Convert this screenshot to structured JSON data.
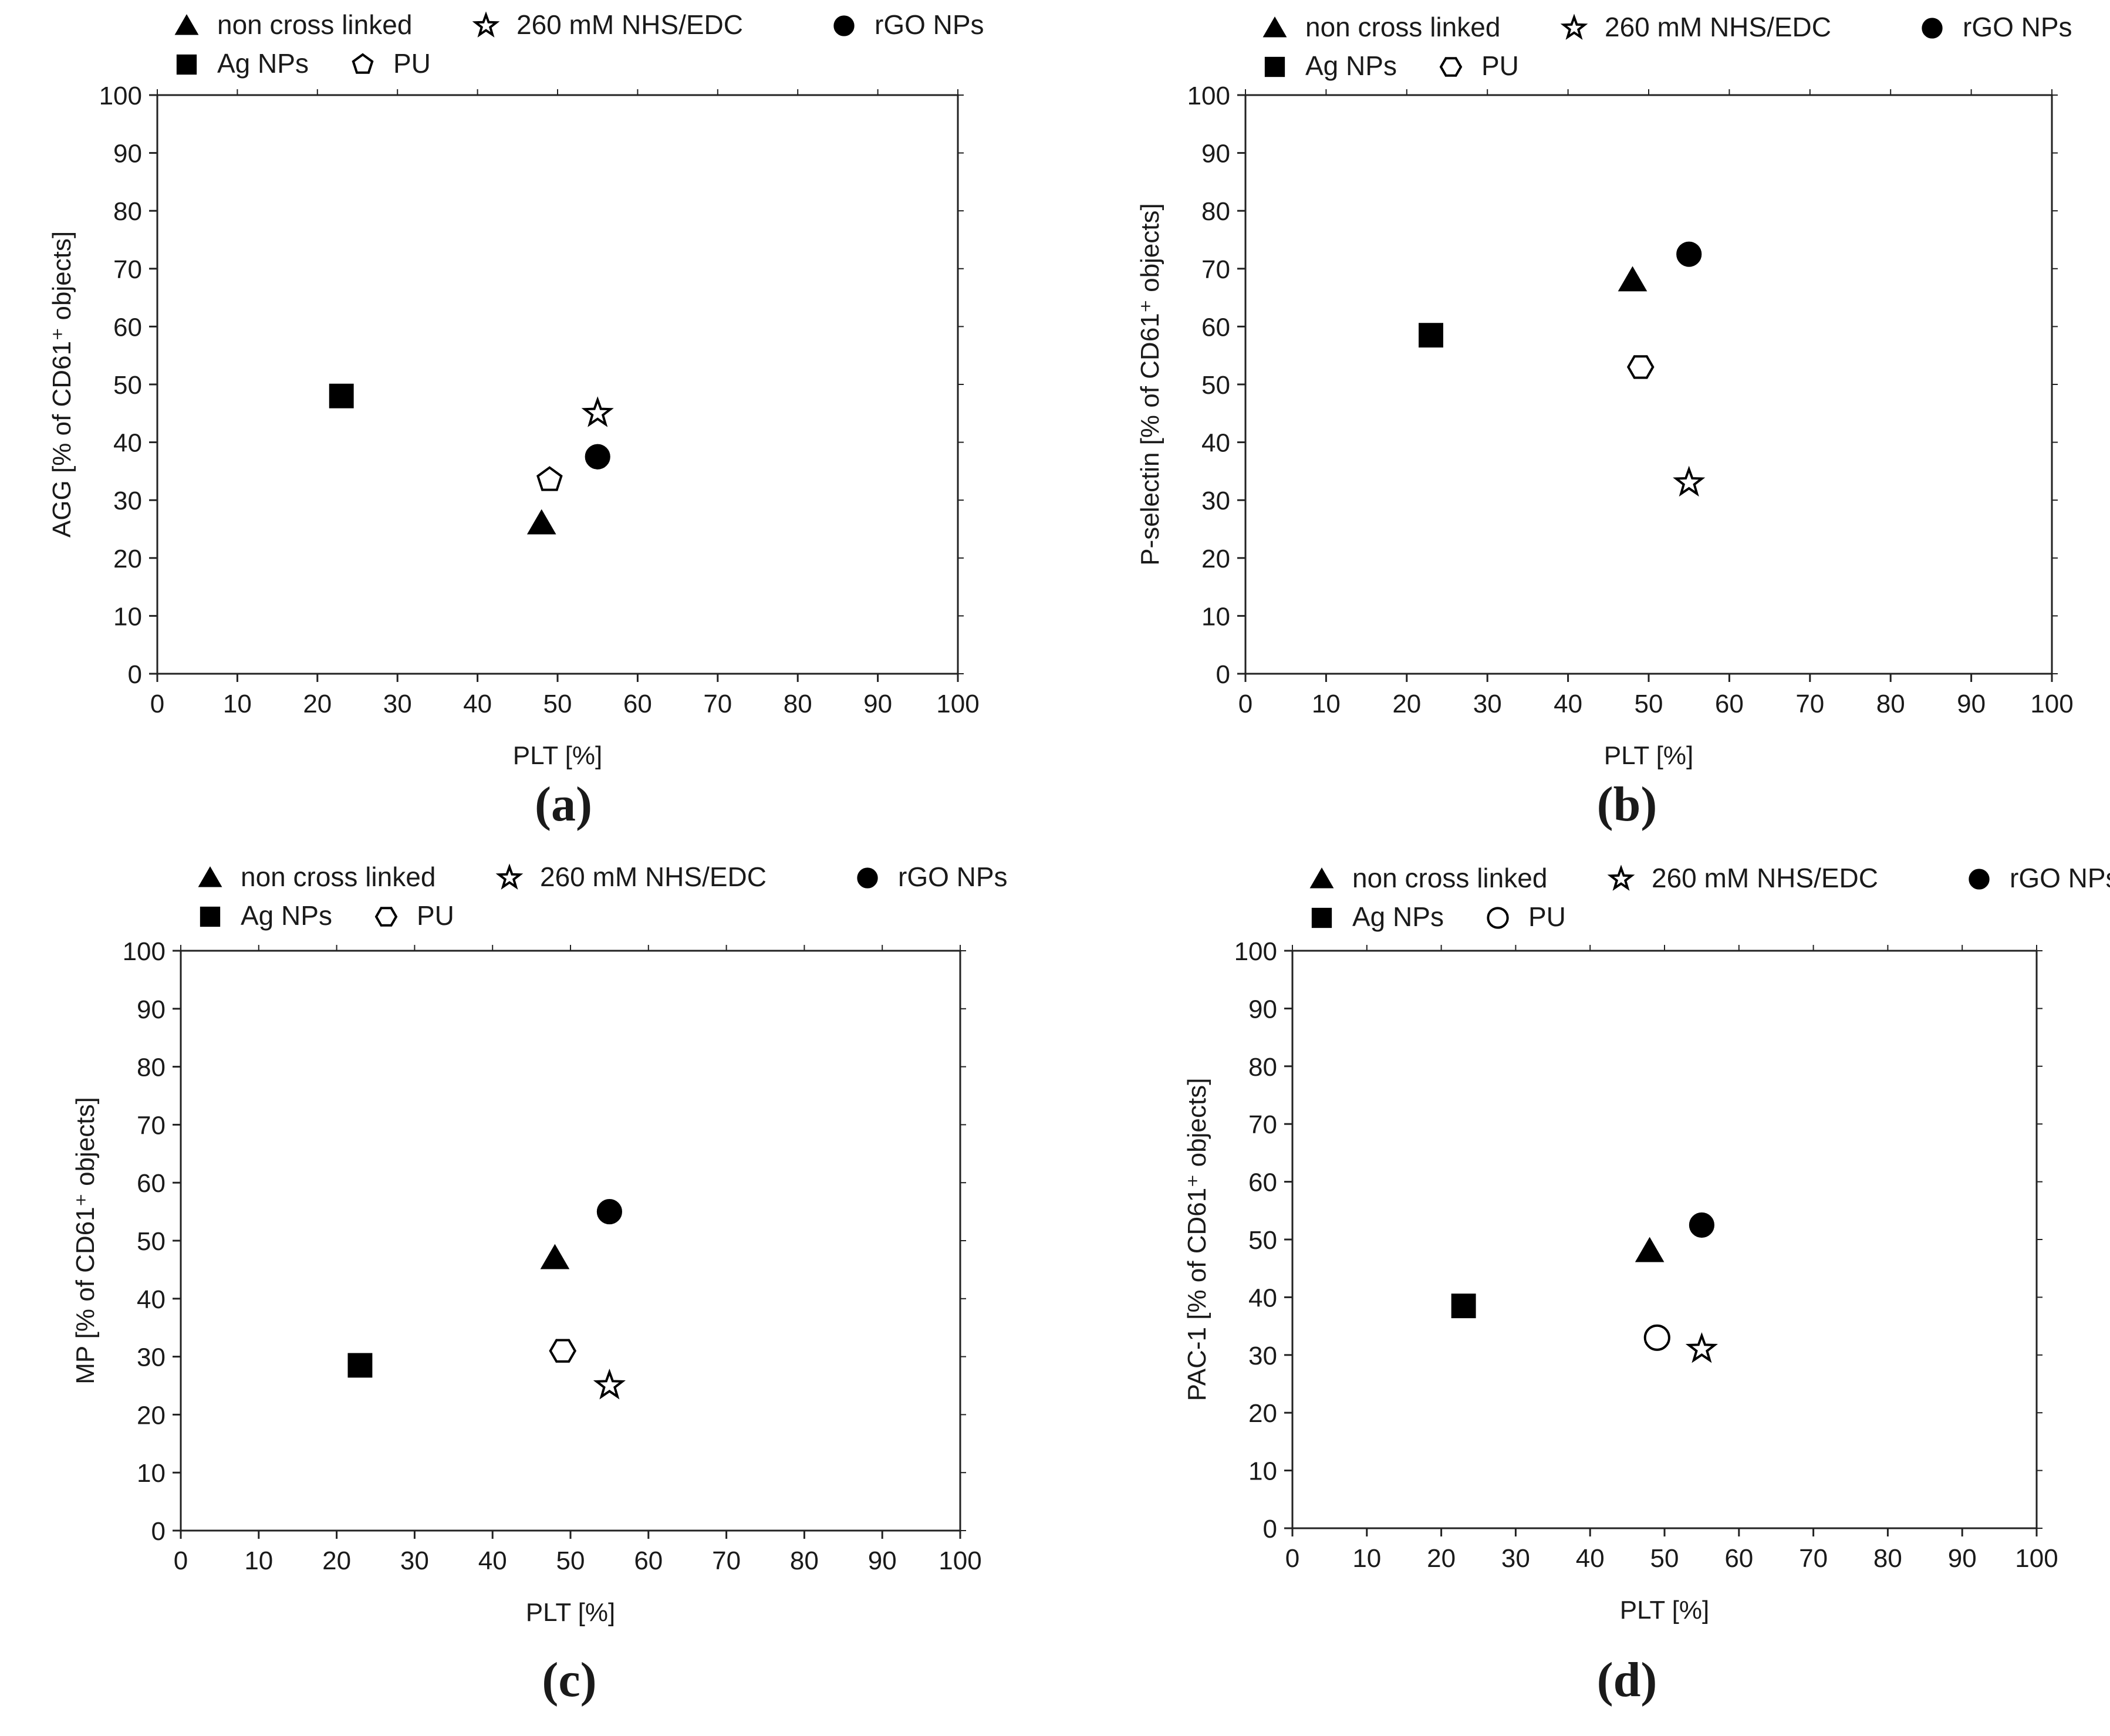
{
  "chart_data": [
    {
      "type": "scatter",
      "panel": "(a)",
      "xlabel": "PLT [%]",
      "ylabel": "AGG [% of CD61⁺ objects]",
      "xlim": [
        0,
        100
      ],
      "ylim": [
        0,
        100
      ],
      "xticks": [
        "0",
        "10",
        "20",
        "30",
        "40",
        "50",
        "60",
        "70",
        "80",
        "90",
        "100"
      ],
      "yticks": [
        "0",
        "10",
        "20",
        "30",
        "40",
        "50",
        "60",
        "70",
        "80",
        "90",
        "100"
      ],
      "series": [
        {
          "name": "non cross linked",
          "marker": "triangle-filled",
          "points": [
            {
              "x": 48,
              "y": 26
            }
          ]
        },
        {
          "name": "260 mM NHS/EDC",
          "marker": "star-open",
          "points": [
            {
              "x": 55,
              "y": 45
            }
          ]
        },
        {
          "name": "rGO NPs",
          "marker": "circle-filled",
          "points": [
            {
              "x": 55,
              "y": 37.5
            }
          ]
        },
        {
          "name": "Ag NPs",
          "marker": "square-filled",
          "points": [
            {
              "x": 23,
              "y": 48
            }
          ]
        },
        {
          "name": "PU",
          "marker": "pentagon-open",
          "points": [
            {
              "x": 49,
              "y": 33.5
            }
          ]
        }
      ]
    },
    {
      "type": "scatter",
      "panel": "(b)",
      "xlabel": "PLT [%]",
      "ylabel": "P-selectin [% of CD61⁺ objects]",
      "xlim": [
        0,
        100
      ],
      "ylim": [
        0,
        100
      ],
      "xticks": [
        "0",
        "10",
        "20",
        "30",
        "40",
        "50",
        "60",
        "70",
        "80",
        "90",
        "100"
      ],
      "yticks": [
        "0",
        "10",
        "20",
        "30",
        "40",
        "50",
        "60",
        "70",
        "80",
        "90",
        "100"
      ],
      "series": [
        {
          "name": "non cross linked",
          "marker": "triangle-filled",
          "points": [
            {
              "x": 48,
              "y": 68
            }
          ]
        },
        {
          "name": "260 mM NHS/EDC",
          "marker": "star-open",
          "points": [
            {
              "x": 55,
              "y": 33
            }
          ]
        },
        {
          "name": "rGO NPs",
          "marker": "circle-filled",
          "points": [
            {
              "x": 55,
              "y": 72.5
            }
          ]
        },
        {
          "name": "Ag NPs",
          "marker": "square-filled",
          "points": [
            {
              "x": 23,
              "y": 58.5
            }
          ]
        },
        {
          "name": "PU",
          "marker": "hexagon-open",
          "points": [
            {
              "x": 49,
              "y": 53
            }
          ]
        }
      ]
    },
    {
      "type": "scatter",
      "panel": "(c)",
      "xlabel": "PLT [%]",
      "ylabel": "MP [% of CD61⁺ objects]",
      "xlim": [
        0,
        100
      ],
      "ylim": [
        0,
        100
      ],
      "xticks": [
        "0",
        "10",
        "20",
        "30",
        "40",
        "50",
        "60",
        "70",
        "80",
        "90",
        "100"
      ],
      "yticks": [
        "0",
        "10",
        "20",
        "30",
        "40",
        "50",
        "60",
        "70",
        "80",
        "90",
        "100"
      ],
      "series": [
        {
          "name": "non cross linked",
          "marker": "triangle-filled",
          "points": [
            {
              "x": 48,
              "y": 47
            }
          ]
        },
        {
          "name": "260 mM NHS/EDC",
          "marker": "star-open",
          "points": [
            {
              "x": 55,
              "y": 25
            }
          ]
        },
        {
          "name": "rGO NPs",
          "marker": "circle-filled",
          "points": [
            {
              "x": 55,
              "y": 55
            }
          ]
        },
        {
          "name": "Ag NPs",
          "marker": "square-filled",
          "points": [
            {
              "x": 23,
              "y": 28.5
            }
          ]
        },
        {
          "name": "PU",
          "marker": "hexagon-open",
          "points": [
            {
              "x": 49,
              "y": 31
            }
          ]
        }
      ]
    },
    {
      "type": "scatter",
      "panel": "(d)",
      "xlabel": "PLT [%]",
      "ylabel": "PAC-1 [% of CD61⁺ objects]",
      "xlim": [
        0,
        100
      ],
      "ylim": [
        0,
        100
      ],
      "xticks": [
        "0",
        "10",
        "20",
        "30",
        "40",
        "50",
        "60",
        "70",
        "80",
        "90",
        "100"
      ],
      "yticks": [
        "0",
        "10",
        "20",
        "30",
        "40",
        "50",
        "60",
        "70",
        "80",
        "90",
        "100"
      ],
      "series": [
        {
          "name": "non cross linked",
          "marker": "triangle-filled",
          "points": [
            {
              "x": 48,
              "y": 48
            }
          ]
        },
        {
          "name": "260 mM NHS/EDC",
          "marker": "star-open",
          "points": [
            {
              "x": 55,
              "y": 31
            }
          ]
        },
        {
          "name": "rGO NPs",
          "marker": "circle-filled",
          "points": [
            {
              "x": 55,
              "y": 52.5
            }
          ]
        },
        {
          "name": "Ag NPs",
          "marker": "square-filled",
          "points": [
            {
              "x": 23,
              "y": 38.5
            }
          ]
        },
        {
          "name": "PU",
          "marker": "circle-open",
          "points": [
            {
              "x": 49,
              "y": 33
            }
          ]
        }
      ]
    }
  ]
}
